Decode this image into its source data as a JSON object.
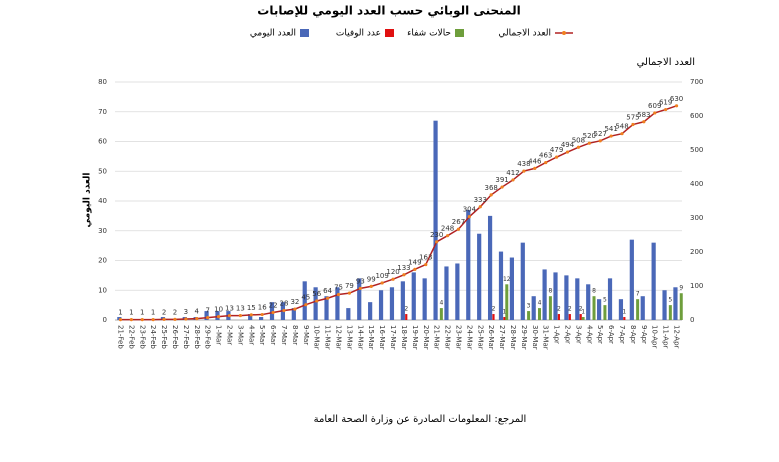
{
  "chart_data": {
    "type": "bar-line",
    "title": "المنحنى الوبائي حسب العدد اليومي للإصابات",
    "y_label": "العدد اليومي",
    "y2_label": "العدد الاجمالي",
    "source": "المرجع: المعلومات الصادرة عن وزارة الصحة العامة",
    "categories": [
      "21-Feb",
      "22-Feb",
      "23-Feb",
      "24-Feb",
      "25-Feb",
      "26-Feb",
      "27-Feb",
      "28-Feb",
      "29-Feb",
      "1-Mar",
      "2-Mar",
      "3-Mar",
      "4-Mar",
      "5-Mar",
      "6-Mar",
      "7-Mar",
      "8-Mar",
      "9-Mar",
      "10-Mar",
      "11-Mar",
      "12-Mar",
      "13-Mar",
      "14-Mar",
      "15-Mar",
      "16-Mar",
      "17-Mar",
      "18-Mar",
      "19-Mar",
      "20-Mar",
      "21-Mar",
      "22-Mar",
      "23-Mar",
      "24-Mar",
      "25-Mar",
      "26-Mar",
      "27-Mar",
      "28-Mar",
      "29-Mar",
      "30-Mar",
      "31-Mar",
      "1-Apr",
      "2-Apr",
      "3-Apr",
      "4-Apr",
      "5-Apr",
      "6-Apr",
      "7-Apr",
      "8-Apr",
      "9-Apr",
      "10-Apr",
      "11-Apr",
      "12-Apr"
    ],
    "series": [
      {
        "name": "العدد اليومي",
        "color": "#4a68b8",
        "values": [
          1,
          0,
          0,
          0,
          1,
          0,
          1,
          1,
          3,
          3,
          3,
          0,
          2,
          1,
          6,
          6,
          4,
          13,
          11,
          8,
          11,
          4,
          14,
          6,
          10,
          11,
          13,
          16,
          14,
          67,
          18,
          19,
          37,
          29,
          35,
          23,
          21,
          26,
          8,
          17,
          16,
          15,
          14,
          12,
          7,
          14,
          7,
          27,
          8,
          26,
          10,
          11
        ]
      },
      {
        "name": "عدد الوفيات",
        "color": "#e01010",
        "values": [
          0,
          0,
          0,
          0,
          0,
          0,
          0,
          0,
          0,
          0,
          0,
          0,
          0,
          0,
          0,
          0,
          0,
          0,
          0,
          0,
          0,
          0,
          0,
          0,
          0,
          0,
          2,
          0,
          0,
          0,
          0,
          0,
          0,
          0,
          2,
          1,
          0,
          0,
          0,
          0,
          2,
          2,
          2,
          0,
          0,
          0,
          1,
          0,
          0,
          0,
          0,
          0
        ]
      },
      {
        "name": "حالات شفاء",
        "color": "#6e9e3c",
        "values": [
          0,
          0,
          0,
          0,
          0,
          0,
          0,
          0,
          0,
          0,
          0,
          0,
          0,
          0,
          0,
          0,
          0,
          0,
          0,
          0,
          0,
          0,
          0,
          0,
          0,
          0,
          0,
          0,
          0,
          4,
          0,
          0,
          0,
          0,
          0,
          12,
          0,
          3,
          4,
          8,
          0,
          0,
          1,
          8,
          5,
          0,
          0,
          7,
          0,
          0,
          5,
          9
        ]
      },
      {
        "name": "العدد الاجمالي",
        "color": "#b22222",
        "marker_color": "#f08020",
        "axis": "y2",
        "values": [
          1,
          1,
          1,
          1,
          2,
          2,
          3,
          4,
          7,
          10,
          13,
          13,
          15,
          16,
          22,
          28,
          32,
          45,
          56,
          64,
          75,
          79,
          93,
          99,
          109,
          120,
          133,
          149,
          163,
          230,
          248,
          267,
          304,
          333,
          368,
          391,
          412,
          438,
          446,
          463,
          479,
          494,
          508,
          520,
          527,
          541,
          548,
          575,
          583,
          609,
          619,
          630
        ]
      }
    ],
    "ylim": [
      0,
      80
    ],
    "yticks": [
      0,
      10,
      20,
      30,
      40,
      50,
      60,
      70,
      80
    ],
    "y2lim": [
      0,
      700
    ],
    "y2ticks": [
      0,
      100,
      200,
      300,
      400,
      500,
      600,
      700
    ],
    "grid": true
  }
}
